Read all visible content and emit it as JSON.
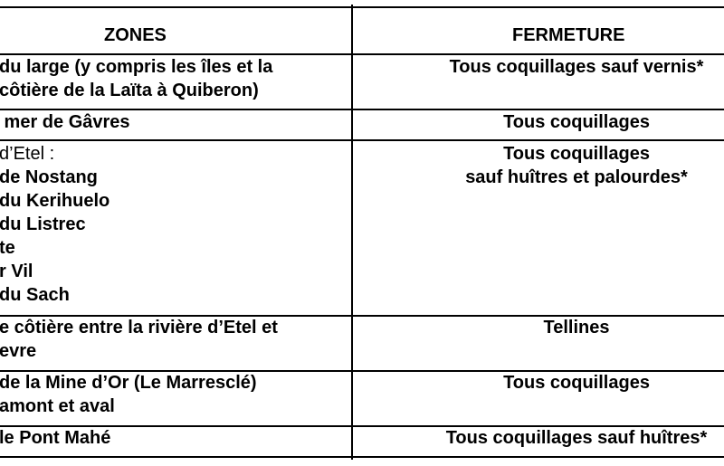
{
  "header": {
    "zones": "ZONES",
    "fermeture": "FERMETURE"
  },
  "rows": [
    {
      "zone_lines": [
        "du large (y compris les îles et la",
        "côtière de la Laïta à Quiberon)"
      ],
      "fermeture_lines": [
        "Tous coquillages sauf vernis*"
      ]
    },
    {
      "zone_lines": [
        " mer de Gâvres"
      ],
      "fermeture_lines": [
        "Tous coquillages"
      ]
    },
    {
      "zone_lines": [
        "d’Etel :",
        "de Nostang",
        "du Kerihuelo",
        "du Listrec",
        "te",
        "r Vil",
        "du Sach"
      ],
      "fermeture_lines": [
        "Tous coquillages",
        "sauf huîtres et palourdes*"
      ]
    },
    {
      "zone_lines": [
        "e côtière entre la rivière d’Etel et",
        "evre"
      ],
      "fermeture_lines": [
        "Tellines"
      ]
    },
    {
      "zone_lines": [
        "de la Mine d’Or (Le Marresclé)",
        "amont et aval"
      ],
      "fermeture_lines": [
        "Tous coquillages"
      ]
    },
    {
      "zone_lines": [
        "le Pont Mahé"
      ],
      "fermeture_lines": [
        "Tous coquillages sauf huîtres*"
      ]
    }
  ]
}
